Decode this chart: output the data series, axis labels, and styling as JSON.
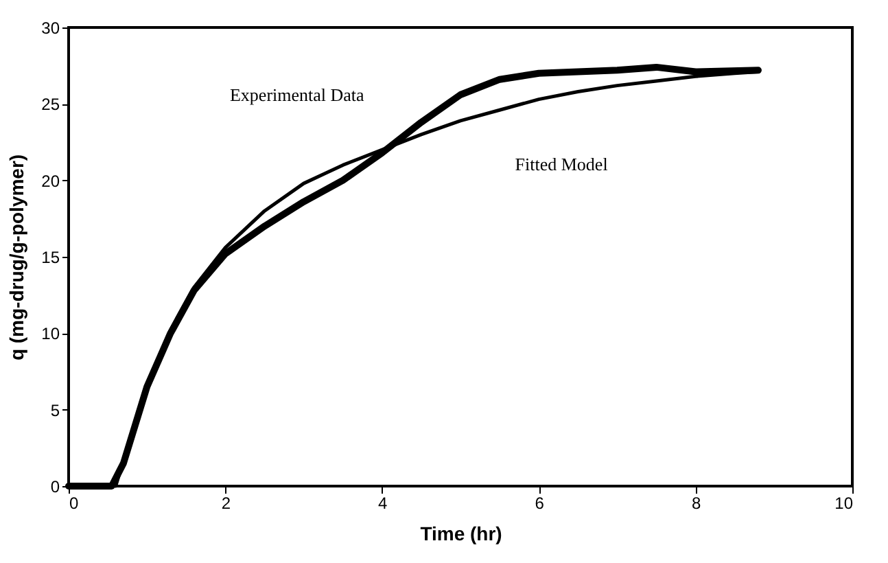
{
  "chart_data": {
    "type": "line",
    "xlabel": "Time (hr)",
    "ylabel": "q (mg-drug/g-polymer)",
    "xlim": [
      0,
      10
    ],
    "ylim": [
      0,
      30
    ],
    "xticks": [
      0,
      2,
      4,
      6,
      8,
      10
    ],
    "yticks": [
      0,
      5,
      10,
      15,
      20,
      25,
      30
    ],
    "grid": false,
    "marker": "none",
    "line_style": "solid",
    "series": [
      {
        "name": "Experimental Data",
        "color": "#000000",
        "x": [
          0,
          0.3,
          0.55,
          0.7,
          1.0,
          1.3,
          1.6,
          2.0,
          2.5,
          3.0,
          3.5,
          4.0,
          4.5,
          5.0,
          5.5,
          6.0,
          6.5,
          7.0,
          7.5,
          8.0,
          8.8
        ],
        "values": [
          0,
          0,
          0,
          1.5,
          6.5,
          10,
          12.8,
          15.2,
          17.0,
          18.6,
          20.0,
          21.8,
          23.8,
          25.6,
          26.6,
          27.0,
          27.1,
          27.2,
          27.4,
          27.1,
          27.2
        ]
      },
      {
        "name": "Fitted Model",
        "color": "#000000",
        "x": [
          0.6,
          0.8,
          1.0,
          1.3,
          1.6,
          2.0,
          2.5,
          3.0,
          3.5,
          4.0,
          4.5,
          5.0,
          5.5,
          6.0,
          6.5,
          7.0,
          7.5,
          8.0,
          8.5,
          8.8
        ],
        "values": [
          0,
          3.3,
          6.5,
          10.2,
          13.0,
          15.6,
          18.0,
          19.8,
          21.0,
          22.0,
          23.0,
          23.9,
          24.6,
          25.3,
          25.8,
          26.2,
          26.5,
          26.8,
          27.0,
          27.1
        ]
      }
    ]
  }
}
